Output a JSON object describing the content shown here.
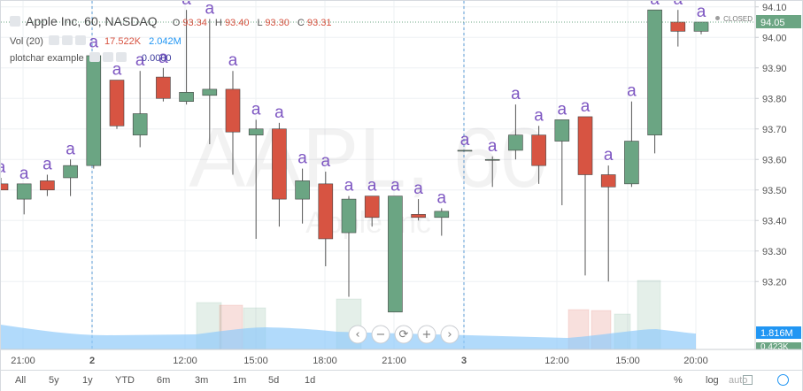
{
  "header": {
    "symbol_title": "Apple Inc, 60, NASDAQ",
    "open_label": "O",
    "open_value": "93.34",
    "high_label": "H",
    "high_value": "93.40",
    "low_label": "L",
    "low_value": "93.30",
    "close_label": "C",
    "close_value": "93.31",
    "status": "CLOSED"
  },
  "indicators": {
    "vol_label": "Vol (20)",
    "vol_value": "17.522K",
    "vol_ma_value": "2.042M",
    "plotchar_label": "plotchar example",
    "plotchar_value": "0.0000"
  },
  "watermark": {
    "main": "AAPL, 60",
    "sub": "Apple Inc"
  },
  "colors": {
    "up": "#6ba583",
    "down": "#d75442",
    "accent": "#2196f3",
    "volume_area": "#90caf9",
    "text": "#535353",
    "char": "#7e57c2"
  },
  "zoom_controls": [
    "‹",
    "−",
    "⟳",
    "+",
    "›"
  ],
  "range_buttons": [
    "All",
    "5y",
    "1y",
    "YTD",
    "6m",
    "3m",
    "1m",
    "5d",
    "1d"
  ],
  "scale_buttons": {
    "percent": "%",
    "log": "log",
    "auto": "auto"
  },
  "chart_data": {
    "type": "candlestick",
    "x_tick_labels": [
      "21:00",
      "2",
      "12:00",
      "15:00",
      "18:00",
      "21:00",
      "3",
      "12:00",
      "15:00",
      "20:00"
    ],
    "y_tick_labels": [
      "93.20",
      "93.30",
      "93.40",
      "93.50",
      "93.60",
      "93.70",
      "93.80",
      "93.90",
      "94.00",
      "94.10"
    ],
    "y_range": [
      93.0,
      94.15
    ],
    "price_last": "94.05",
    "volume_labels": [
      "1.816M",
      "0.423K"
    ],
    "plotchar": "a",
    "candles": [
      {
        "o": 93.52,
        "h": 93.54,
        "l": 93.5,
        "c": 93.5
      },
      {
        "o": 93.47,
        "h": 93.52,
        "l": 93.42,
        "c": 93.52
      },
      {
        "o": 93.53,
        "h": 93.55,
        "l": 93.48,
        "c": 93.5
      },
      {
        "o": 93.54,
        "h": 93.6,
        "l": 93.48,
        "c": 93.58
      },
      {
        "o": 93.58,
        "h": 93.95,
        "l": 93.57,
        "c": 93.94
      },
      {
        "o": 93.86,
        "h": 93.86,
        "l": 93.7,
        "c": 93.71
      },
      {
        "o": 93.68,
        "h": 93.89,
        "l": 93.64,
        "c": 93.75
      },
      {
        "o": 93.87,
        "h": 93.9,
        "l": 93.79,
        "c": 93.8
      },
      {
        "o": 93.79,
        "h": 94.09,
        "l": 93.78,
        "c": 93.82
      },
      {
        "o": 93.81,
        "h": 94.06,
        "l": 93.65,
        "c": 93.83
      },
      {
        "o": 93.83,
        "h": 93.89,
        "l": 93.55,
        "c": 93.69
      },
      {
        "o": 93.68,
        "h": 93.73,
        "l": 93.34,
        "c": 93.7
      },
      {
        "o": 93.7,
        "h": 93.72,
        "l": 93.38,
        "c": 93.47
      },
      {
        "o": 93.47,
        "h": 93.57,
        "l": 93.39,
        "c": 93.53
      },
      {
        "o": 93.52,
        "h": 93.56,
        "l": 93.25,
        "c": 93.34
      },
      {
        "o": 93.36,
        "h": 93.48,
        "l": 93.15,
        "c": 93.47
      },
      {
        "o": 93.48,
        "h": 93.48,
        "l": 93.38,
        "c": 93.41
      },
      {
        "o": 93.1,
        "h": 93.48,
        "l": 93.1,
        "c": 93.48
      },
      {
        "o": 93.42,
        "h": 93.47,
        "l": 93.4,
        "c": 93.41
      },
      {
        "o": 93.41,
        "h": 93.44,
        "l": 93.35,
        "c": 93.43
      },
      {
        "o": 93.63,
        "h": 93.63,
        "l": 93.63,
        "c": 93.63
      },
      {
        "o": 93.6,
        "h": 93.61,
        "l": 93.51,
        "c": 93.6
      },
      {
        "o": 93.63,
        "h": 93.78,
        "l": 93.6,
        "c": 93.68
      },
      {
        "o": 93.68,
        "h": 93.71,
        "l": 93.52,
        "c": 93.58
      },
      {
        "o": 93.66,
        "h": 93.73,
        "l": 93.45,
        "c": 93.73
      },
      {
        "o": 93.74,
        "h": 93.74,
        "l": 93.22,
        "c": 93.55
      },
      {
        "o": 93.55,
        "h": 93.58,
        "l": 93.2,
        "c": 93.51
      },
      {
        "o": 93.52,
        "h": 93.79,
        "l": 93.51,
        "c": 93.66
      },
      {
        "o": 93.68,
        "h": 94.09,
        "l": 93.62,
        "c": 94.09
      },
      {
        "o": 94.05,
        "h": 94.09,
        "l": 93.97,
        "c": 94.02
      },
      {
        "o": 94.02,
        "h": 94.05,
        "l": 94.01,
        "c": 94.05
      }
    ]
  }
}
